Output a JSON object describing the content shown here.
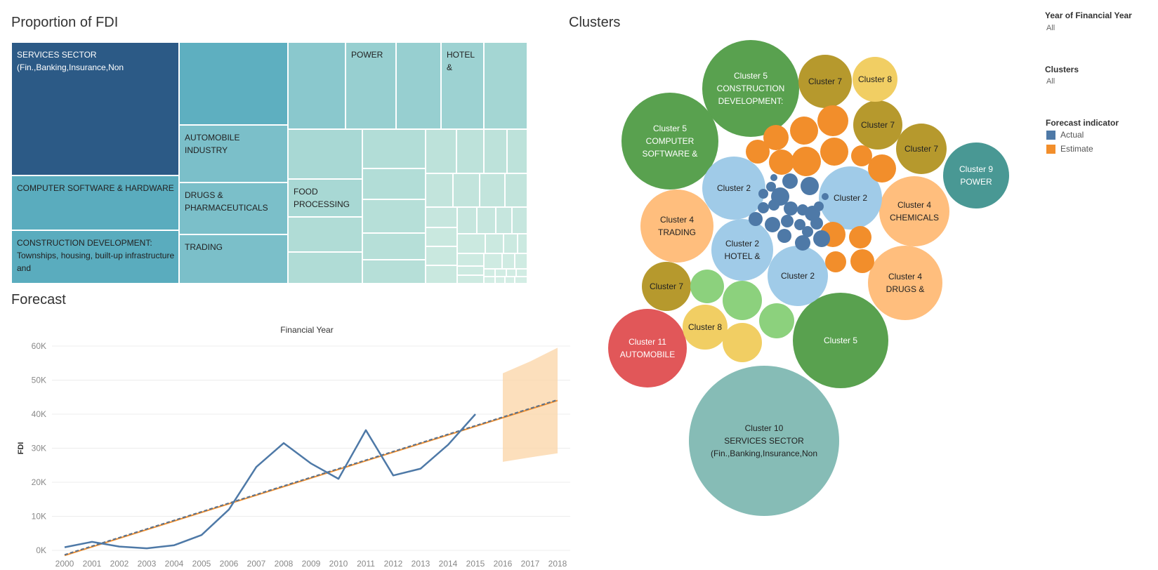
{
  "titles": {
    "treemap": "Proportion of FDI",
    "forecast": "Forecast",
    "clusters": "Clusters"
  },
  "filters": {
    "year": {
      "title": "Year of Financial Year",
      "value": "All"
    },
    "clusters": {
      "title": "Clusters",
      "value": "All"
    },
    "forecast": {
      "title": "Forecast indicator",
      "items": [
        "Actual",
        "Estimate"
      ]
    }
  },
  "colors": {
    "actual": "#4e79a7",
    "estimate": "#f28e2b",
    "band": "#fbd9b0"
  },
  "chart_data": [
    {
      "type": "treemap",
      "title": "Proportion of FDI",
      "labels": [
        "SERVICES SECTOR (Fin.,Banking,Insurance,Non",
        "COMPUTER SOFTWARE & HARDWARE",
        "CONSTRUCTION DEVELOPMENT: Townships, housing, built-up infrastructure and",
        "AUTOMOBILE INDUSTRY",
        "DRUGS & PHARMACEUTICALS",
        "TRADING",
        "POWER",
        "HOTEL &",
        "FOOD PROCESSING"
      ]
    },
    {
      "type": "line",
      "title": "Financial Year",
      "xlabel": "",
      "ylabel": "FDI",
      "x": [
        2000,
        2001,
        2002,
        2003,
        2004,
        2005,
        2006,
        2007,
        2008,
        2009,
        2010,
        2011,
        2012,
        2013,
        2014,
        2015,
        2016,
        2017,
        2018
      ],
      "ylim": [
        0,
        60000
      ],
      "yticks": [
        "0K",
        "10K",
        "20K",
        "30K",
        "40K",
        "50K",
        "60K"
      ],
      "series": [
        {
          "name": "Actual",
          "x": [
            2000,
            2001,
            2002,
            2003,
            2004,
            2005,
            2006,
            2007,
            2008,
            2009,
            2010,
            2011,
            2012,
            2013,
            2014,
            2015
          ],
          "values": [
            900,
            2500,
            1100,
            600,
            1500,
            4500,
            12000,
            24500,
            31500,
            25500,
            21000,
            35300,
            22000,
            24000,
            31000,
            40000
          ]
        },
        {
          "name": "Estimate",
          "x": [
            2016,
            2017,
            2018
          ],
          "values": [
            39200,
            41700,
            44200
          ],
          "lower": [
            26000,
            27300,
            28500
          ],
          "upper": [
            52000,
            55500,
            59500
          ]
        }
      ],
      "trend": {
        "x": [
          2000,
          2018
        ],
        "values": [
          -1500,
          44000
        ]
      }
    },
    {
      "type": "bubble",
      "title": "Clusters",
      "bubbles": [
        {
          "label": [
            "Cluster 10",
            "SERVICES SECTOR",
            "(Fin.,Banking,Insurance,Non"
          ],
          "color": "#86bcb6"
        },
        {
          "label": [
            "Cluster 5",
            "CONSTRUCTION",
            "DEVELOPMENT:"
          ],
          "color": "#59a14f"
        },
        {
          "label": [
            "Cluster 5",
            "COMPUTER",
            "SOFTWARE &"
          ],
          "color": "#59a14f"
        },
        {
          "label": [
            "Cluster 5"
          ],
          "color": "#59a14f"
        },
        {
          "label": [
            "Cluster 11",
            "AUTOMOBILE"
          ],
          "color": "#e15759"
        },
        {
          "label": [
            "Cluster 9",
            "POWER"
          ],
          "color": "#499894"
        },
        {
          "label": [
            "Cluster 4",
            "TRADING"
          ],
          "color": "#ffbe7d"
        },
        {
          "label": [
            "Cluster 4",
            "CHEMICALS"
          ],
          "color": "#ffbe7d"
        },
        {
          "label": [
            "Cluster 4",
            "DRUGS &"
          ],
          "color": "#ffbe7d"
        },
        {
          "label": [
            "Cluster 2"
          ],
          "color": "#a0cbe8"
        },
        {
          "label": [
            "Cluster 2"
          ],
          "color": "#a0cbe8"
        },
        {
          "label": [
            "Cluster 2",
            "HOTEL &"
          ],
          "color": "#a0cbe8"
        },
        {
          "label": [
            "Cluster 2"
          ],
          "color": "#a0cbe8"
        },
        {
          "label": [
            "Cluster 7"
          ],
          "color": "#b6992d"
        },
        {
          "label": [
            "Cluster 7"
          ],
          "color": "#b6992d"
        },
        {
          "label": [
            "Cluster 7"
          ],
          "color": "#b6992d"
        },
        {
          "label": [
            "Cluster 7"
          ],
          "color": "#b6992d"
        },
        {
          "label": [
            "Cluster 8"
          ],
          "color": "#f1ce63"
        },
        {
          "label": [
            "Cluster 8"
          ],
          "color": "#f1ce63"
        }
      ]
    }
  ]
}
